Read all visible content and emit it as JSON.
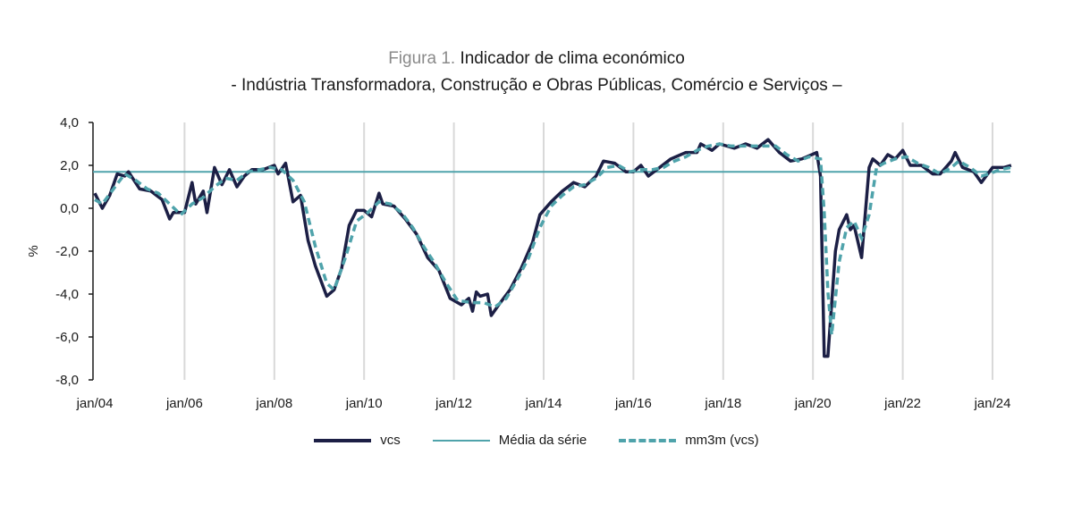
{
  "title": {
    "prefix": "Figura 1.",
    "main": "Indicador de clima económico",
    "subtitle": "- Indústria Transformadora, Construção e Obras Públicas, Comércio e Serviços –"
  },
  "chart_data": {
    "type": "line",
    "ylabel": "%",
    "xlabel": "",
    "ylim": [
      -8,
      4
    ],
    "yticks": [
      "4,0",
      "2,0",
      "0,0",
      "-2,0",
      "-4,0",
      "-6,0",
      "-8,0"
    ],
    "xticks": [
      "jan/04",
      "jan/06",
      "jan/08",
      "jan/10",
      "jan/12",
      "jan/14",
      "jan/16",
      "jan/18",
      "jan/20",
      "jan/22",
      "jan/24"
    ],
    "grid": "vertical",
    "legend": "bottom",
    "colors": {
      "vcs": "#1c1f45",
      "mean": "#4fa3ab",
      "mm3m": "#4fa3ab"
    },
    "series": [
      {
        "name": "vcs",
        "style": "solid",
        "points": [
          [
            "2004-01",
            0.7
          ],
          [
            "2004-03",
            0.0
          ],
          [
            "2004-05",
            0.6
          ],
          [
            "2004-07",
            1.6
          ],
          [
            "2004-09",
            1.5
          ],
          [
            "2004-10",
            1.7
          ],
          [
            "2005-01",
            0.9
          ],
          [
            "2005-04",
            0.8
          ],
          [
            "2005-07",
            0.4
          ],
          [
            "2005-09",
            -0.5
          ],
          [
            "2005-10",
            -0.2
          ],
          [
            "2006-01",
            -0.2
          ],
          [
            "2006-03",
            1.2
          ],
          [
            "2006-04",
            0.2
          ],
          [
            "2006-06",
            0.8
          ],
          [
            "2006-07",
            -0.2
          ],
          [
            "2006-09",
            1.9
          ],
          [
            "2006-11",
            1.1
          ],
          [
            "2007-01",
            1.8
          ],
          [
            "2007-03",
            1.0
          ],
          [
            "2007-05",
            1.5
          ],
          [
            "2007-07",
            1.8
          ],
          [
            "2007-10",
            1.8
          ],
          [
            "2008-01",
            2.0
          ],
          [
            "2008-02",
            1.6
          ],
          [
            "2008-04",
            2.1
          ],
          [
            "2008-06",
            0.3
          ],
          [
            "2008-08",
            0.6
          ],
          [
            "2008-10",
            -1.5
          ],
          [
            "2008-12",
            -2.7
          ],
          [
            "2009-03",
            -4.1
          ],
          [
            "2009-05",
            -3.8
          ],
          [
            "2009-07",
            -2.8
          ],
          [
            "2009-09",
            -0.8
          ],
          [
            "2009-11",
            -0.1
          ],
          [
            "2010-01",
            -0.1
          ],
          [
            "2010-03",
            -0.4
          ],
          [
            "2010-05",
            0.7
          ],
          [
            "2010-06",
            0.2
          ],
          [
            "2010-09",
            0.1
          ],
          [
            "2010-12",
            -0.5
          ],
          [
            "2011-03",
            -1.2
          ],
          [
            "2011-06",
            -2.3
          ],
          [
            "2011-09",
            -2.9
          ],
          [
            "2011-12",
            -4.2
          ],
          [
            "2012-03",
            -4.5
          ],
          [
            "2012-05",
            -4.2
          ],
          [
            "2012-06",
            -4.8
          ],
          [
            "2012-07",
            -3.9
          ],
          [
            "2012-08",
            -4.1
          ],
          [
            "2012-10",
            -4.0
          ],
          [
            "2012-11",
            -5.0
          ],
          [
            "2013-01",
            -4.5
          ],
          [
            "2013-04",
            -3.8
          ],
          [
            "2013-07",
            -2.8
          ],
          [
            "2013-10",
            -1.6
          ],
          [
            "2013-12",
            -0.3
          ],
          [
            "2014-03",
            0.3
          ],
          [
            "2014-06",
            0.8
          ],
          [
            "2014-09",
            1.2
          ],
          [
            "2014-12",
            1.0
          ],
          [
            "2015-03",
            1.5
          ],
          [
            "2015-05",
            2.2
          ],
          [
            "2015-08",
            2.1
          ],
          [
            "2015-11",
            1.7
          ],
          [
            "2016-01",
            1.7
          ],
          [
            "2016-03",
            2.0
          ],
          [
            "2016-05",
            1.5
          ],
          [
            "2016-08",
            1.9
          ],
          [
            "2016-11",
            2.3
          ],
          [
            "2017-03",
            2.6
          ],
          [
            "2017-06",
            2.6
          ],
          [
            "2017-07",
            3.0
          ],
          [
            "2017-10",
            2.7
          ],
          [
            "2017-12",
            3.0
          ],
          [
            "2018-04",
            2.8
          ],
          [
            "2018-07",
            3.0
          ],
          [
            "2018-10",
            2.8
          ],
          [
            "2019-01",
            3.2
          ],
          [
            "2019-04",
            2.6
          ],
          [
            "2019-07",
            2.2
          ],
          [
            "2019-10",
            2.3
          ],
          [
            "2020-02",
            2.6
          ],
          [
            "2020-03",
            1.5
          ],
          [
            "2020-04",
            -6.9
          ],
          [
            "2020-05",
            -6.9
          ],
          [
            "2020-07",
            -2.0
          ],
          [
            "2020-08",
            -1.0
          ],
          [
            "2020-10",
            -0.3
          ],
          [
            "2020-11",
            -1.0
          ],
          [
            "2020-12",
            -0.8
          ],
          [
            "2021-02",
            -2.3
          ],
          [
            "2021-04",
            1.9
          ],
          [
            "2021-05",
            2.3
          ],
          [
            "2021-07",
            2.0
          ],
          [
            "2021-09",
            2.5
          ],
          [
            "2021-11",
            2.3
          ],
          [
            "2022-01",
            2.7
          ],
          [
            "2022-03",
            2.0
          ],
          [
            "2022-06",
            2.0
          ],
          [
            "2022-09",
            1.6
          ],
          [
            "2022-11",
            1.6
          ],
          [
            "2023-02",
            2.2
          ],
          [
            "2023-03",
            2.6
          ],
          [
            "2023-05",
            1.9
          ],
          [
            "2023-08",
            1.7
          ],
          [
            "2023-10",
            1.2
          ],
          [
            "2024-01",
            1.9
          ],
          [
            "2024-04",
            1.9
          ],
          [
            "2024-06",
            2.0
          ]
        ]
      },
      {
        "name": "Média da série",
        "style": "solid",
        "value": 1.7
      },
      {
        "name": "mm3m (vcs)",
        "style": "dashed",
        "points": [
          [
            "2004-01",
            0.4
          ],
          [
            "2004-03",
            0.2
          ],
          [
            "2004-06",
            0.9
          ],
          [
            "2004-09",
            1.6
          ],
          [
            "2004-12",
            1.3
          ],
          [
            "2005-03",
            0.9
          ],
          [
            "2005-06",
            0.7
          ],
          [
            "2005-09",
            0.2
          ],
          [
            "2005-12",
            -0.3
          ],
          [
            "2006-03",
            0.2
          ],
          [
            "2006-06",
            0.5
          ],
          [
            "2006-09",
            1.0
          ],
          [
            "2006-12",
            1.4
          ],
          [
            "2007-03",
            1.3
          ],
          [
            "2007-06",
            1.7
          ],
          [
            "2007-09",
            1.8
          ],
          [
            "2007-12",
            1.9
          ],
          [
            "2008-03",
            1.8
          ],
          [
            "2008-06",
            1.3
          ],
          [
            "2008-09",
            0.3
          ],
          [
            "2008-12",
            -1.8
          ],
          [
            "2009-03",
            -3.5
          ],
          [
            "2009-05",
            -3.8
          ],
          [
            "2009-08",
            -2.3
          ],
          [
            "2009-11",
            -0.6
          ],
          [
            "2010-02",
            -0.2
          ],
          [
            "2010-05",
            0.3
          ],
          [
            "2010-08",
            0.2
          ],
          [
            "2010-11",
            -0.2
          ],
          [
            "2011-02",
            -0.9
          ],
          [
            "2011-05",
            -1.8
          ],
          [
            "2011-08",
            -2.6
          ],
          [
            "2011-11",
            -3.5
          ],
          [
            "2012-02",
            -4.3
          ],
          [
            "2012-06",
            -4.4
          ],
          [
            "2012-09",
            -4.4
          ],
          [
            "2012-12",
            -4.6
          ],
          [
            "2013-03",
            -4.2
          ],
          [
            "2013-06",
            -3.3
          ],
          [
            "2013-09",
            -2.3
          ],
          [
            "2013-12",
            -0.9
          ],
          [
            "2014-03",
            0.1
          ],
          [
            "2014-06",
            0.6
          ],
          [
            "2014-09",
            1.0
          ],
          [
            "2014-12",
            1.1
          ],
          [
            "2015-03",
            1.4
          ],
          [
            "2015-06",
            1.9
          ],
          [
            "2015-09",
            2.0
          ],
          [
            "2015-12",
            1.7
          ],
          [
            "2016-03",
            1.8
          ],
          [
            "2016-06",
            1.8
          ],
          [
            "2016-09",
            1.9
          ],
          [
            "2016-12",
            2.2
          ],
          [
            "2017-03",
            2.4
          ],
          [
            "2017-06",
            2.7
          ],
          [
            "2017-09",
            2.9
          ],
          [
            "2017-12",
            3.0
          ],
          [
            "2018-03",
            2.9
          ],
          [
            "2018-06",
            2.9
          ],
          [
            "2018-09",
            2.9
          ],
          [
            "2018-12",
            2.9
          ],
          [
            "2019-03",
            2.9
          ],
          [
            "2019-06",
            2.5
          ],
          [
            "2019-09",
            2.2
          ],
          [
            "2019-12",
            2.4
          ],
          [
            "2020-03",
            2.3
          ],
          [
            "2020-04",
            -0.2
          ],
          [
            "2020-05",
            -3.9
          ],
          [
            "2020-06",
            -5.9
          ],
          [
            "2020-08",
            -2.5
          ],
          [
            "2020-10",
            -0.9
          ],
          [
            "2020-12",
            -0.6
          ],
          [
            "2021-02",
            -1.4
          ],
          [
            "2021-04",
            -0.3
          ],
          [
            "2021-06",
            1.9
          ],
          [
            "2021-08",
            2.1
          ],
          [
            "2021-11",
            2.3
          ],
          [
            "2022-02",
            2.4
          ],
          [
            "2022-05",
            2.1
          ],
          [
            "2022-08",
            1.9
          ],
          [
            "2022-11",
            1.6
          ],
          [
            "2023-02",
            1.9
          ],
          [
            "2023-04",
            2.2
          ],
          [
            "2023-07",
            1.9
          ],
          [
            "2023-10",
            1.5
          ],
          [
            "2023-12",
            1.6
          ],
          [
            "2024-03",
            1.8
          ],
          [
            "2024-06",
            1.9
          ]
        ]
      }
    ]
  }
}
